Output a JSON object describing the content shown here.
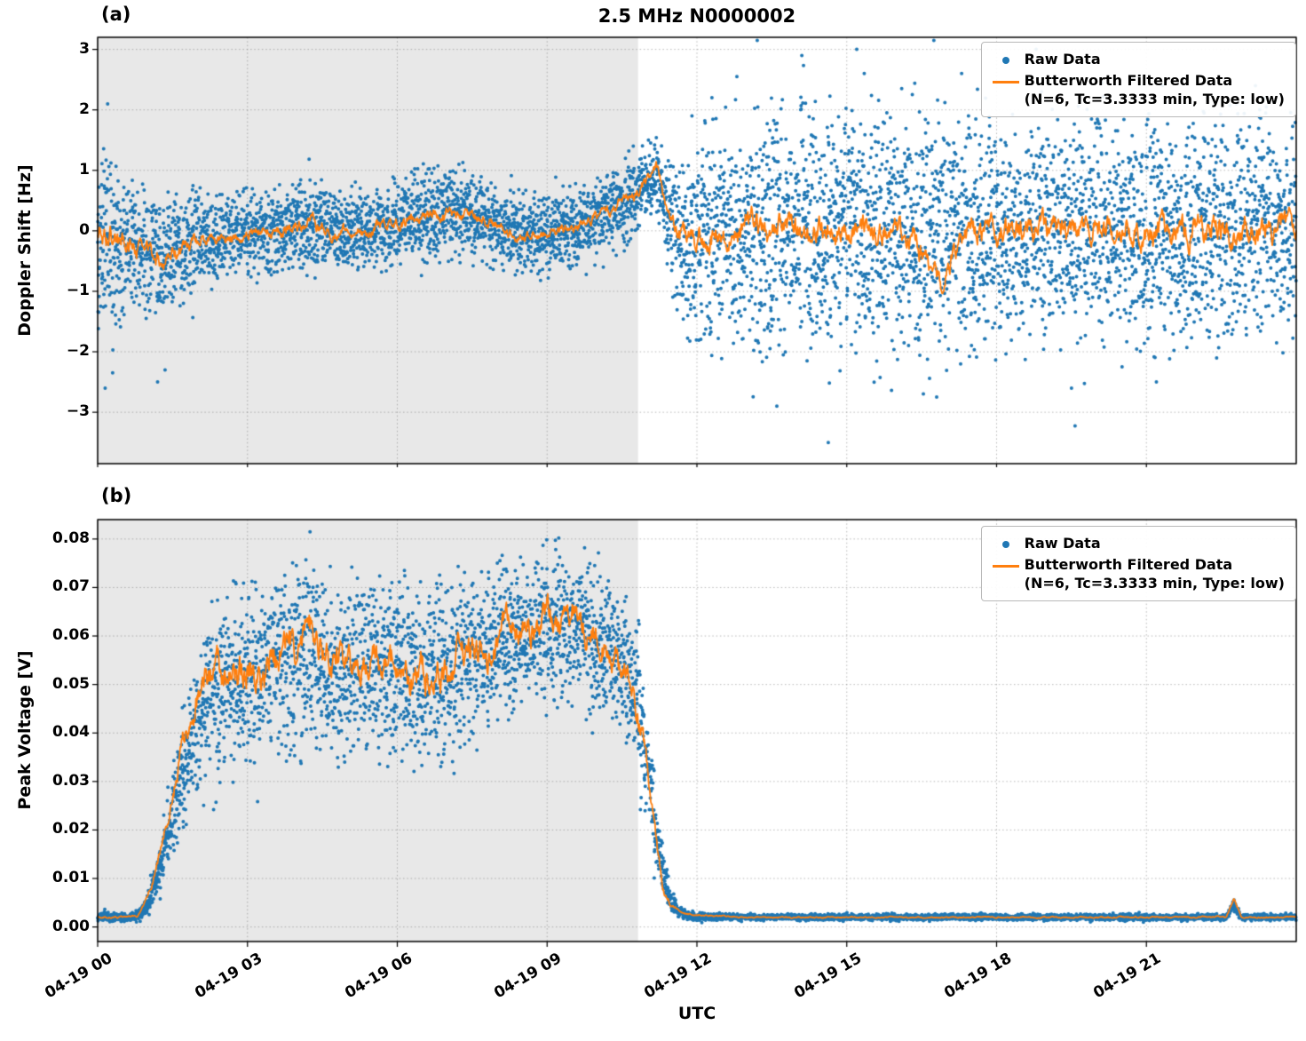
{
  "figure": {
    "xlabel": "UTC",
    "colors": {
      "raw": "#1f77b4",
      "filtered": "#ff7f0e",
      "shade": "#e8e8e8"
    }
  },
  "chart_data": [
    {
      "type": "scatter",
      "panel_label": "(a)",
      "title": "2.5 MHz N0000002",
      "ylabel": "Doppler Shift [Hz]",
      "ylim": [
        -3.85,
        3.2
      ],
      "yticks": [
        -3,
        -2,
        -1,
        0,
        1,
        2,
        3
      ],
      "ytick_labels": [
        "−3",
        "−2",
        "−1",
        "0",
        "1",
        "2",
        "3"
      ],
      "xlim_hours": [
        0,
        24
      ],
      "xticks_hours": [
        0,
        3,
        6,
        9,
        12,
        15,
        18,
        21
      ],
      "shaded_region_hours": [
        0,
        10.82
      ],
      "grid": true,
      "legend_position": "upper right",
      "legend": {
        "raw": "Raw Data",
        "filtered_1": "Butterworth Filtered Data",
        "filtered_2": "(N=6, Tc=3.3333 min, Type: low)"
      },
      "raw_envelope": [
        [
          0,
          -0.1,
          2.3
        ],
        [
          0.3,
          -0.15,
          2.1
        ],
        [
          0.6,
          -0.25,
          1.7
        ],
        [
          0.9,
          -0.35,
          1.4
        ],
        [
          1.2,
          -0.45,
          1.4
        ],
        [
          1.5,
          -0.4,
          1.5
        ],
        [
          1.8,
          -0.25,
          1.2
        ],
        [
          2.1,
          -0.15,
          1.0
        ],
        [
          2.4,
          -0.1,
          0.95
        ],
        [
          2.8,
          -0.05,
          0.95
        ],
        [
          3.2,
          0,
          0.95
        ],
        [
          3.6,
          0,
          1.0
        ],
        [
          4.0,
          0.05,
          1.0
        ],
        [
          4.3,
          0.1,
          1.1
        ],
        [
          4.6,
          0,
          0.95
        ],
        [
          5.0,
          0,
          0.9
        ],
        [
          5.4,
          0.05,
          0.95
        ],
        [
          5.8,
          0.05,
          0.95
        ],
        [
          6.2,
          0.15,
          1.0
        ],
        [
          6.6,
          0.25,
          1.05
        ],
        [
          7.0,
          0.3,
          1.05
        ],
        [
          7.4,
          0.3,
          1.0
        ],
        [
          7.8,
          0.15,
          1.0
        ],
        [
          8.2,
          0,
          0.9
        ],
        [
          8.6,
          -0.05,
          0.85
        ],
        [
          9.0,
          -0.05,
          0.85
        ],
        [
          9.4,
          0.05,
          0.9
        ],
        [
          9.8,
          0.15,
          0.9
        ],
        [
          10.2,
          0.3,
          0.9
        ],
        [
          10.6,
          0.5,
          0.95
        ],
        [
          11.0,
          0.85,
          0.95
        ],
        [
          11.2,
          0.95,
          0.95
        ],
        [
          11.35,
          0.5,
          1.1
        ],
        [
          11.55,
          0,
          1.5
        ],
        [
          11.8,
          -0.25,
          2.0
        ],
        [
          12.1,
          -0.15,
          2.3
        ],
        [
          12.5,
          0,
          2.5
        ],
        [
          13,
          0,
          2.6
        ],
        [
          14,
          0,
          2.7
        ],
        [
          15,
          0,
          2.75
        ],
        [
          16,
          0,
          2.7
        ],
        [
          17,
          0,
          2.7
        ],
        [
          18,
          0,
          2.65
        ],
        [
          19,
          0,
          2.7
        ],
        [
          20,
          0,
          2.7
        ],
        [
          21,
          0,
          2.65
        ],
        [
          22,
          0,
          2.7
        ],
        [
          23,
          0,
          2.65
        ],
        [
          24,
          0,
          2.6
        ]
      ],
      "extra_raw_points": [
        [
          12.8,
          2.55
        ],
        [
          14.1,
          2.9
        ],
        [
          15.2,
          3.0
        ],
        [
          15.35,
          2.6
        ],
        [
          16.1,
          2.35
        ],
        [
          17.3,
          2.6
        ],
        [
          18.9,
          2.3
        ],
        [
          12.3,
          2.2
        ],
        [
          14.63,
          -3.5
        ],
        [
          13.6,
          -2.9
        ],
        [
          16.8,
          -2.75
        ],
        [
          19.5,
          -2.6
        ],
        [
          21.2,
          -2.5
        ],
        [
          22.8,
          2.1
        ],
        [
          23.4,
          2.05
        ],
        [
          11.9,
          1.9
        ],
        [
          0.15,
          -2.6
        ],
        [
          0.3,
          -2.35
        ],
        [
          0.2,
          2.1
        ],
        [
          1.2,
          -2.5
        ],
        [
          1.35,
          -2.3
        ]
      ],
      "filtered_line": [
        [
          0,
          -0.05
        ],
        [
          0.3,
          -0.12
        ],
        [
          0.6,
          -0.18
        ],
        [
          0.9,
          -0.3
        ],
        [
          1.2,
          -0.42
        ],
        [
          1.35,
          -0.5
        ],
        [
          1.55,
          -0.35
        ],
        [
          1.8,
          -0.25
        ],
        [
          2.1,
          -0.15
        ],
        [
          2.5,
          -0.1
        ],
        [
          2.9,
          -0.05
        ],
        [
          3.3,
          0
        ],
        [
          3.7,
          0
        ],
        [
          4.0,
          0.08
        ],
        [
          4.25,
          0.18
        ],
        [
          4.45,
          0.02
        ],
        [
          4.7,
          -0.05
        ],
        [
          5.0,
          0
        ],
        [
          5.4,
          0.03
        ],
        [
          5.8,
          0.05
        ],
        [
          6.2,
          0.12
        ],
        [
          6.6,
          0.22
        ],
        [
          7.0,
          0.3
        ],
        [
          7.35,
          0.28
        ],
        [
          7.7,
          0.2
        ],
        [
          8.0,
          0.08
        ],
        [
          8.3,
          -0.05
        ],
        [
          8.6,
          -0.12
        ],
        [
          8.9,
          -0.06
        ],
        [
          9.2,
          0
        ],
        [
          9.5,
          0.05
        ],
        [
          9.8,
          0.15
        ],
        [
          10.1,
          0.28
        ],
        [
          10.45,
          0.45
        ],
        [
          10.8,
          0.65
        ],
        [
          11.0,
          0.82
        ],
        [
          11.18,
          1.05
        ],
        [
          11.3,
          0.75
        ],
        [
          11.45,
          0.3
        ],
        [
          11.65,
          -0.05
        ],
        [
          12.0,
          -0.12
        ],
        [
          12.4,
          -0.05
        ],
        [
          12.8,
          0.05
        ],
        [
          13.5,
          0
        ],
        [
          14.5,
          0
        ],
        [
          15.5,
          0
        ],
        [
          16.4,
          -0.1
        ],
        [
          16.7,
          -0.55
        ],
        [
          16.9,
          -1.0
        ],
        [
          17.1,
          -0.45
        ],
        [
          17.35,
          -0.1
        ],
        [
          18,
          0
        ],
        [
          19,
          0
        ],
        [
          20,
          0
        ],
        [
          21,
          0
        ],
        [
          22,
          0
        ],
        [
          23,
          0
        ],
        [
          24,
          0
        ]
      ]
    },
    {
      "type": "scatter",
      "panel_label": "(b)",
      "ylabel": "Peak Voltage [V]",
      "xlabel": "UTC",
      "ylim": [
        -0.003,
        0.084
      ],
      "yticks": [
        0,
        0.01,
        0.02,
        0.03,
        0.04,
        0.05,
        0.06,
        0.07,
        0.08
      ],
      "ytick_labels": [
        "0.00",
        "0.01",
        "0.02",
        "0.03",
        "0.04",
        "0.05",
        "0.06",
        "0.07",
        "0.08"
      ],
      "xlim_hours": [
        0,
        24
      ],
      "xticks_hours": [
        0,
        3,
        6,
        9,
        12,
        15,
        18,
        21
      ],
      "xtick_labels": [
        "04-19 00",
        "04-19 03",
        "04-19 06",
        "04-19 09",
        "04-19 12",
        "04-19 15",
        "04-19 18",
        "04-19 21"
      ],
      "shaded_region_hours": [
        0,
        10.82
      ],
      "grid": true,
      "legend_position": "upper right",
      "legend": {
        "raw": "Raw Data",
        "filtered_1": "Butterworth Filtered Data",
        "filtered_2": "(N=6, Tc=3.3333 min, Type: low)"
      },
      "raw_envelope": [
        [
          0,
          0.002,
          0.0012
        ],
        [
          0.7,
          0.002,
          0.0013
        ],
        [
          0.9,
          0.003,
          0.002
        ],
        [
          1.05,
          0.006,
          0.004
        ],
        [
          1.2,
          0.011,
          0.007
        ],
        [
          1.35,
          0.017,
          0.01
        ],
        [
          1.5,
          0.024,
          0.013
        ],
        [
          1.7,
          0.032,
          0.016
        ],
        [
          1.9,
          0.04,
          0.019
        ],
        [
          2.1,
          0.046,
          0.022
        ],
        [
          2.4,
          0.05,
          0.024
        ],
        [
          2.7,
          0.051,
          0.025
        ],
        [
          3.0,
          0.052,
          0.026
        ],
        [
          3.3,
          0.053,
          0.026
        ],
        [
          3.6,
          0.055,
          0.025
        ],
        [
          3.9,
          0.053,
          0.026
        ],
        [
          4.2,
          0.057,
          0.025
        ],
        [
          4.5,
          0.055,
          0.025
        ],
        [
          4.8,
          0.051,
          0.026
        ],
        [
          5.1,
          0.053,
          0.025
        ],
        [
          5.4,
          0.054,
          0.025
        ],
        [
          5.7,
          0.053,
          0.025
        ],
        [
          6.0,
          0.054,
          0.026
        ],
        [
          6.3,
          0.052,
          0.026
        ],
        [
          6.6,
          0.051,
          0.026
        ],
        [
          6.9,
          0.052,
          0.025
        ],
        [
          7.2,
          0.054,
          0.024
        ],
        [
          7.5,
          0.056,
          0.023
        ],
        [
          7.8,
          0.058,
          0.022
        ],
        [
          8.1,
          0.06,
          0.022
        ],
        [
          8.4,
          0.059,
          0.022
        ],
        [
          8.7,
          0.061,
          0.021
        ],
        [
          9.0,
          0.062,
          0.021
        ],
        [
          9.3,
          0.061,
          0.021
        ],
        [
          9.6,
          0.063,
          0.02
        ],
        [
          9.9,
          0.06,
          0.021
        ],
        [
          10.2,
          0.058,
          0.021
        ],
        [
          10.5,
          0.055,
          0.021
        ],
        [
          10.8,
          0.048,
          0.02
        ],
        [
          11.0,
          0.035,
          0.016
        ],
        [
          11.15,
          0.022,
          0.011
        ],
        [
          11.3,
          0.012,
          0.007
        ],
        [
          11.45,
          0.006,
          0.004
        ],
        [
          11.6,
          0.0035,
          0.002
        ],
        [
          11.8,
          0.0025,
          0.0013
        ],
        [
          12.2,
          0.002,
          0.001
        ],
        [
          13,
          0.002,
          0.0009
        ],
        [
          16,
          0.002,
          0.0009
        ],
        [
          20,
          0.002,
          0.0009
        ],
        [
          22.6,
          0.002,
          0.001
        ],
        [
          22.75,
          0.0045,
          0.002
        ],
        [
          22.9,
          0.002,
          0.001
        ],
        [
          24,
          0.002,
          0.0009
        ]
      ],
      "filtered_line": [
        [
          0,
          0.002
        ],
        [
          0.8,
          0.002
        ],
        [
          1.0,
          0.006
        ],
        [
          1.2,
          0.013
        ],
        [
          1.4,
          0.022
        ],
        [
          1.6,
          0.032
        ],
        [
          1.8,
          0.04
        ],
        [
          2.0,
          0.047
        ],
        [
          2.2,
          0.05
        ],
        [
          2.5,
          0.053
        ],
        [
          2.8,
          0.05
        ],
        [
          3.0,
          0.055
        ],
        [
          3.2,
          0.05
        ],
        [
          3.5,
          0.054
        ],
        [
          3.8,
          0.058
        ],
        [
          4.0,
          0.054
        ],
        [
          4.2,
          0.067
        ],
        [
          4.35,
          0.06
        ],
        [
          4.5,
          0.056
        ],
        [
          4.7,
          0.052
        ],
        [
          5.0,
          0.055
        ],
        [
          5.2,
          0.05
        ],
        [
          5.5,
          0.057
        ],
        [
          5.8,
          0.053
        ],
        [
          6.0,
          0.055
        ],
        [
          6.2,
          0.05
        ],
        [
          6.5,
          0.054
        ],
        [
          6.8,
          0.05
        ],
        [
          7.0,
          0.052
        ],
        [
          7.2,
          0.055
        ],
        [
          7.5,
          0.058
        ],
        [
          7.8,
          0.055
        ],
        [
          8.0,
          0.06
        ],
        [
          8.2,
          0.063
        ],
        [
          8.5,
          0.06
        ],
        [
          8.8,
          0.062
        ],
        [
          9.0,
          0.064
        ],
        [
          9.2,
          0.06
        ],
        [
          9.5,
          0.066
        ],
        [
          9.7,
          0.062
        ],
        [
          10.0,
          0.06
        ],
        [
          10.2,
          0.058
        ],
        [
          10.4,
          0.055
        ],
        [
          10.6,
          0.052
        ],
        [
          10.75,
          0.048
        ],
        [
          10.9,
          0.04
        ],
        [
          11.05,
          0.028
        ],
        [
          11.2,
          0.015
        ],
        [
          11.35,
          0.007
        ],
        [
          11.5,
          0.004
        ],
        [
          11.7,
          0.003
        ],
        [
          12.0,
          0.0025
        ],
        [
          13,
          0.002
        ],
        [
          14,
          0.002
        ],
        [
          15,
          0.002
        ],
        [
          16,
          0.002
        ],
        [
          17,
          0.002
        ],
        [
          18,
          0.002
        ],
        [
          19,
          0.002
        ],
        [
          20,
          0.002
        ],
        [
          21,
          0.002
        ],
        [
          22,
          0.002
        ],
        [
          22.6,
          0.002
        ],
        [
          22.75,
          0.006
        ],
        [
          22.9,
          0.002
        ],
        [
          24,
          0.002
        ]
      ]
    }
  ]
}
